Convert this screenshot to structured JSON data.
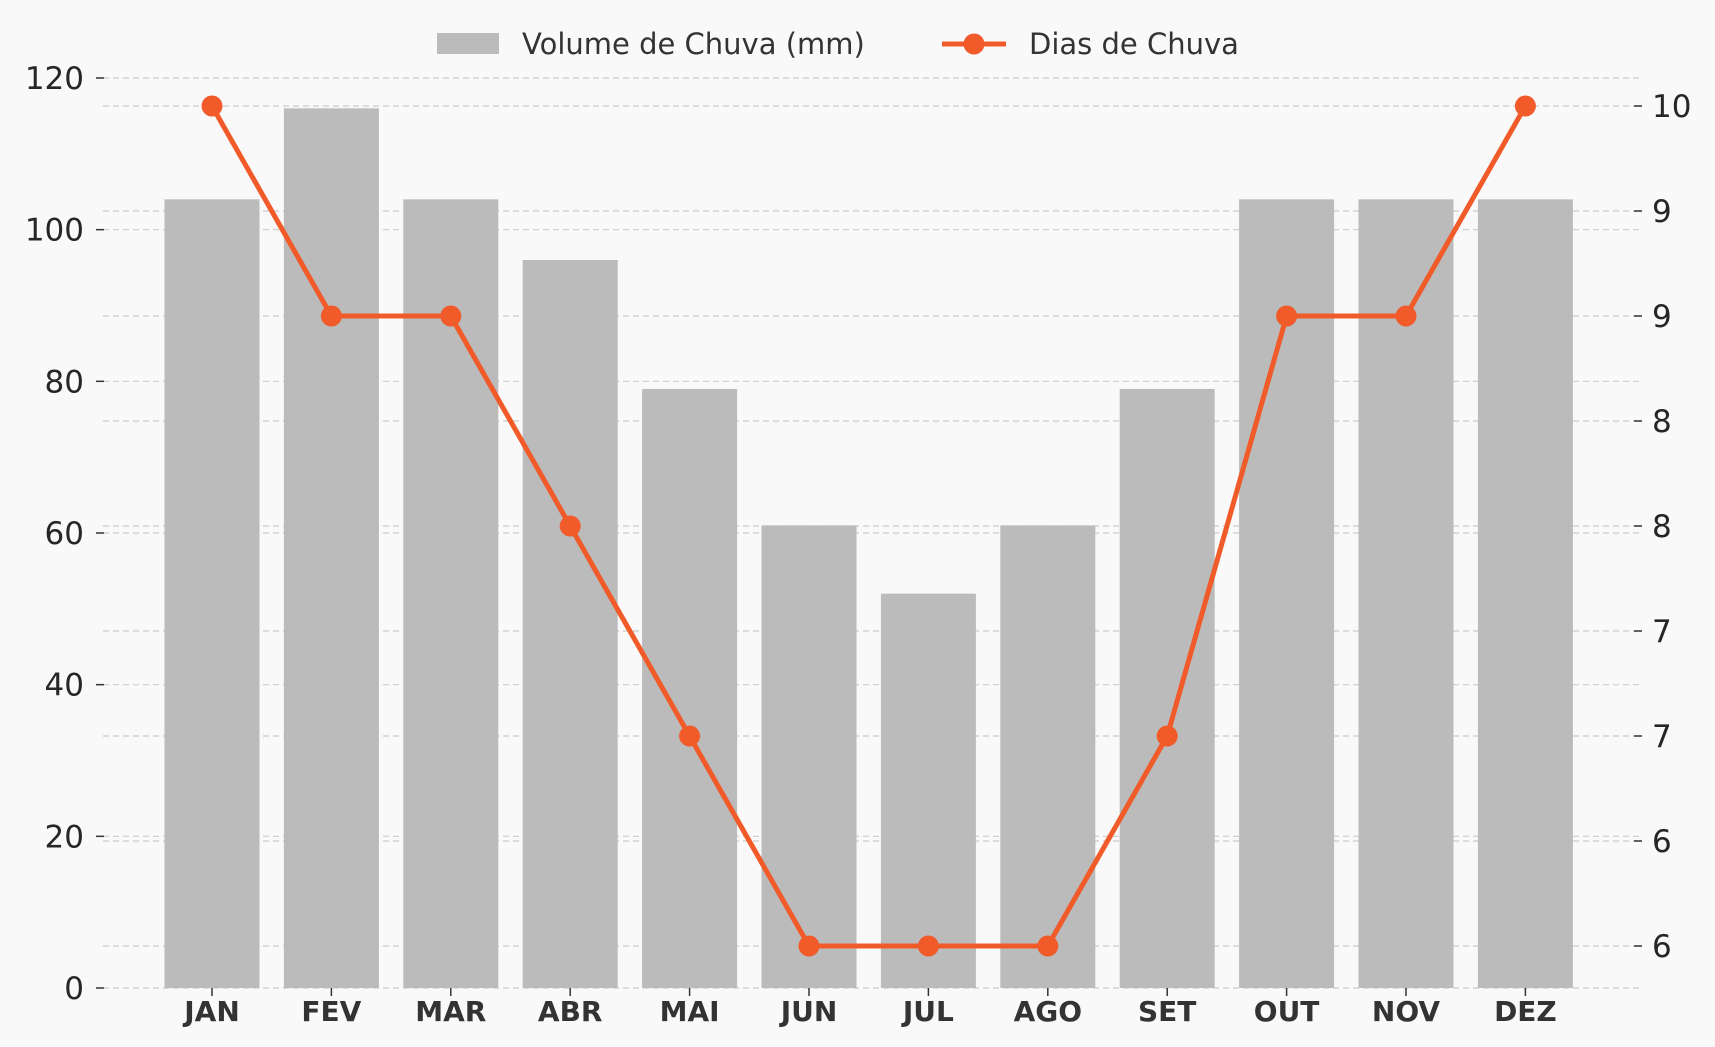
{
  "chart_data": {
    "type": "bar",
    "categories": [
      "JAN",
      "FEV",
      "MAR",
      "ABR",
      "MAI",
      "JUN",
      "JUL",
      "AGO",
      "SET",
      "OUT",
      "NOV",
      "DEZ"
    ],
    "series": [
      {
        "name": "Volume de Chuva (mm)",
        "type": "bar",
        "axis": "left",
        "color": "#bbbbbb",
        "values": [
          104,
          116,
          104,
          96,
          79,
          61,
          52,
          61,
          79,
          104,
          104,
          104
        ]
      },
      {
        "name": "Dias de Chuva",
        "type": "line",
        "axis": "right",
        "color": "#f15a29",
        "values": [
          10,
          9,
          9,
          8,
          7,
          6,
          6,
          6,
          7,
          9,
          9,
          10
        ]
      }
    ],
    "left_axis": {
      "ylim": [
        0,
        120
      ],
      "ticks": [
        0,
        20,
        40,
        60,
        80,
        100,
        120
      ]
    },
    "right_axis": {
      "ylim": [
        5.6,
        10.2
      ],
      "ticks": [
        6.0,
        6.33,
        6.67,
        7.0,
        7.33,
        7.67,
        8.0,
        8.33,
        8.67,
        9.0,
        9.33,
        9.67,
        10.0
      ],
      "tick_labels": [
        "6",
        "6",
        "7",
        "7",
        "8",
        "8",
        "9",
        "9",
        "10"
      ],
      "labeled_ticks": [
        6.0,
        6.5,
        7.0,
        7.5,
        8.0,
        8.5,
        9.0,
        9.5,
        10.0
      ]
    },
    "grid": "dashed horizontal",
    "legend_position": "top-center",
    "background": "#faf9f9"
  }
}
